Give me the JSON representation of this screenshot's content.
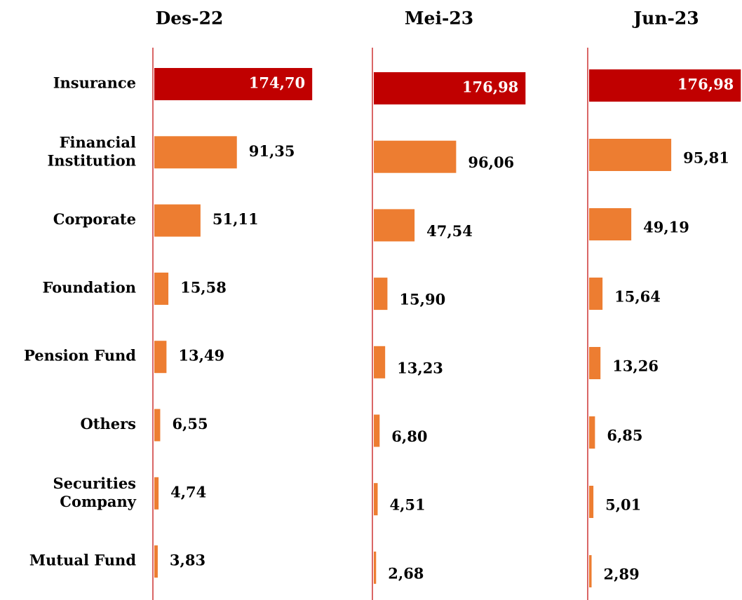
{
  "chart_data": [
    {
      "type": "bar",
      "orientation": "horizontal",
      "title": "Des-22",
      "categories": [
        "Insurance",
        "Financial\nInstitution",
        "Corporate",
        "Foundation",
        "Pension Fund",
        "Others",
        "Securities\nCompany",
        "Mutual Fund"
      ],
      "values": [
        174.7,
        91.35,
        51.11,
        15.58,
        13.49,
        6.55,
        4.74,
        3.83
      ],
      "value_labels": [
        "174,70",
        "91,35",
        "51,11",
        "15,58",
        "13,49",
        "6,55",
        "4,74",
        "3,83"
      ],
      "colors": [
        "#c00000",
        "#ed7d31",
        "#ed7d31",
        "#ed7d31",
        "#ed7d31",
        "#ed7d31",
        "#ed7d31",
        "#ed7d31"
      ],
      "xlim": [
        0,
        180
      ]
    },
    {
      "type": "bar",
      "orientation": "horizontal",
      "title": "Mei-23",
      "values": [
        176.98,
        96.06,
        47.54,
        15.9,
        13.23,
        6.8,
        4.51,
        2.68
      ],
      "value_labels": [
        "176,98",
        "96,06",
        "47,54",
        "15,90",
        "13,23",
        "6,80",
        "4,51",
        "2,68"
      ],
      "colors": [
        "#c00000",
        "#ed7d31",
        "#ed7d31",
        "#ed7d31",
        "#ed7d31",
        "#ed7d31",
        "#ed7d31",
        "#ed7d31"
      ],
      "xlim": [
        0,
        180
      ]
    },
    {
      "type": "bar",
      "orientation": "horizontal",
      "title": "Jun-23",
      "values": [
        176.98,
        95.81,
        49.19,
        15.64,
        13.26,
        6.85,
        5.01,
        2.89
      ],
      "value_labels": [
        "176,98",
        "95,81",
        "49,19",
        "15,64",
        "13,26",
        "6,85",
        "5,01",
        "2,89"
      ],
      "colors": [
        "#c00000",
        "#ed7d31",
        "#ed7d31",
        "#ed7d31",
        "#ed7d31",
        "#ed7d31",
        "#ed7d31",
        "#ed7d31"
      ],
      "xlim": [
        0,
        180
      ]
    }
  ]
}
